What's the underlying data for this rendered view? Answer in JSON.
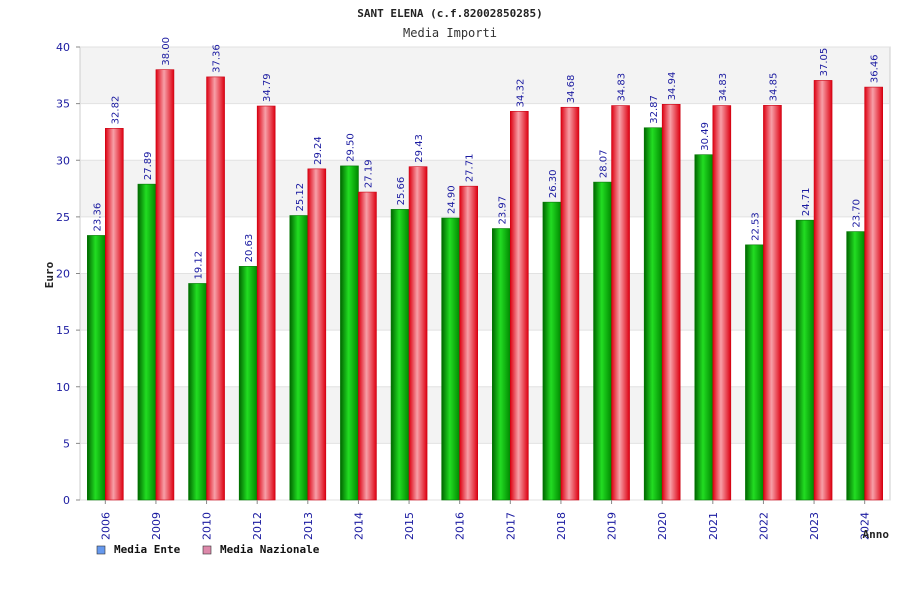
{
  "chart_data": {
    "type": "bar",
    "title": "SANT ELENA (c.f.82002850285)",
    "subtitle": "Media Importi",
    "xlabel": "Anno",
    "ylabel": "Euro",
    "ylim": [
      0,
      40
    ],
    "yticks": [
      "0",
      "5",
      "10",
      "15",
      "20",
      "25",
      "30",
      "35",
      "40"
    ],
    "grid": true,
    "legend_position": "bottom-left",
    "categories": [
      "2006",
      "2009",
      "2010",
      "2012",
      "2013",
      "2014",
      "2015",
      "2016",
      "2017",
      "2018",
      "2019",
      "2020",
      "2021",
      "2022",
      "2023",
      "2024"
    ],
    "series": [
      {
        "name": "Media Ente",
        "color": "#00bb00",
        "values": [
          23.36,
          27.89,
          19.12,
          20.63,
          25.12,
          29.5,
          25.66,
          24.9,
          23.97,
          26.3,
          28.07,
          32.87,
          30.49,
          22.53,
          24.71,
          23.7
        ],
        "labels": [
          "23.36",
          "27.89",
          "19.12",
          "20.63",
          "25.12",
          "29.50",
          "25.66",
          "24.90",
          "23.97",
          "26.30",
          "28.07",
          "32.87",
          "30.49",
          "22.53",
          "24.71",
          "23.70"
        ]
      },
      {
        "name": "Media Nazionale",
        "color": "#ee1122",
        "values": [
          32.82,
          38.0,
          37.36,
          34.79,
          29.24,
          27.19,
          29.43,
          27.71,
          34.32,
          34.68,
          34.83,
          34.94,
          34.83,
          34.85,
          37.05,
          36.46
        ],
        "labels": [
          "32.82",
          "38.00",
          "37.36",
          "34.79",
          "29.24",
          "27.19",
          "29.43",
          "27.71",
          "34.32",
          "34.68",
          "34.83",
          "34.94",
          "34.83",
          "34.85",
          "37.05",
          "36.46"
        ]
      }
    ],
    "legend": [
      {
        "label": "Media Ente",
        "color": "#6699ee"
      },
      {
        "label": "Media Nazionale",
        "color": "#dd88aa"
      }
    ]
  }
}
